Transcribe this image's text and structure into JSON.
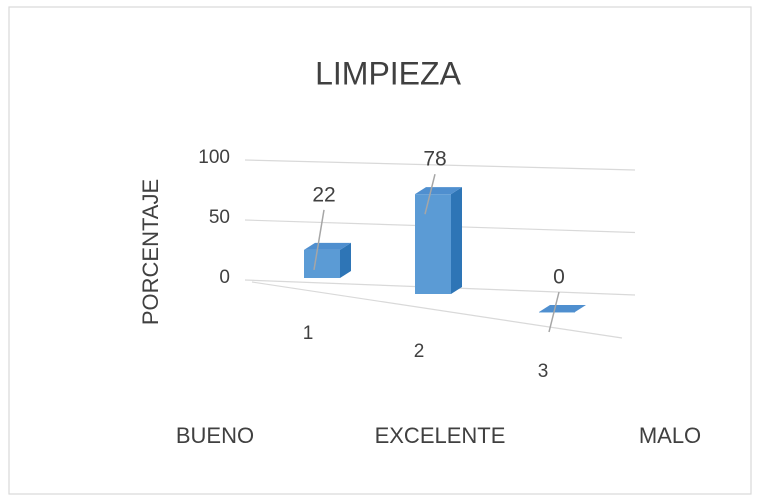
{
  "chart_data": {
    "type": "bar3d",
    "title": "LIMPIEZA",
    "ylabel": "PORCENTAJE",
    "categories": [
      "1",
      "2",
      "3"
    ],
    "values": [
      22,
      78,
      0
    ],
    "category_names": [
      "BUENO",
      "EXCELENTE",
      "MALO"
    ],
    "color": "#5b9bd5",
    "ylim": [
      0,
      100
    ],
    "yticks": [
      0,
      50,
      100
    ],
    "grid": true
  }
}
